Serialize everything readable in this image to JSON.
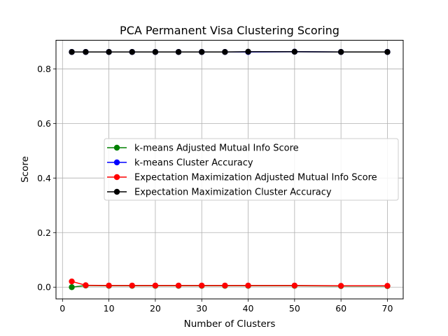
{
  "chart_data": {
    "type": "line",
    "title": "PCA Permanent Visa Clustering Scoring",
    "xlabel": "Number of Clusters",
    "ylabel": "Score",
    "xlim": [
      -1.4,
      73.4
    ],
    "ylim": [
      -0.043,
      0.905
    ],
    "xticks": [
      0,
      10,
      20,
      30,
      40,
      50,
      60,
      70
    ],
    "yticks": [
      0.0,
      0.2,
      0.4,
      0.6,
      0.8
    ],
    "ytick_labels": [
      "0.0",
      "0.2",
      "0.4",
      "0.6",
      "0.8"
    ],
    "grid": true,
    "legend_position": "center-right",
    "x": [
      2,
      5,
      10,
      15,
      20,
      25,
      30,
      35,
      40,
      50,
      60,
      70
    ],
    "series": [
      {
        "name": "k-means Adjusted Mutual Info Score",
        "color": "#008000",
        "values": [
          0.0,
          0.006,
          0.005,
          0.005,
          0.005,
          0.005,
          0.005,
          0.005,
          0.005,
          0.005,
          0.004,
          0.004
        ]
      },
      {
        "name": "k-means Cluster Accuracy",
        "color": "#0000ff",
        "values": [
          0.862,
          0.862,
          0.862,
          0.862,
          0.862,
          0.862,
          0.862,
          0.862,
          0.862,
          0.863,
          0.862,
          0.862
        ]
      },
      {
        "name": "Expectation Maximization Adjusted Mutual Info Score",
        "color": "#ff0000",
        "values": [
          0.021,
          0.007,
          0.006,
          0.006,
          0.006,
          0.006,
          0.006,
          0.006,
          0.006,
          0.006,
          0.005,
          0.005
        ]
      },
      {
        "name": "Expectation Maximization Cluster Accuracy",
        "color": "#000000",
        "values": [
          0.862,
          0.862,
          0.862,
          0.862,
          0.862,
          0.862,
          0.862,
          0.862,
          0.863,
          0.863,
          0.862,
          0.862
        ]
      }
    ]
  }
}
